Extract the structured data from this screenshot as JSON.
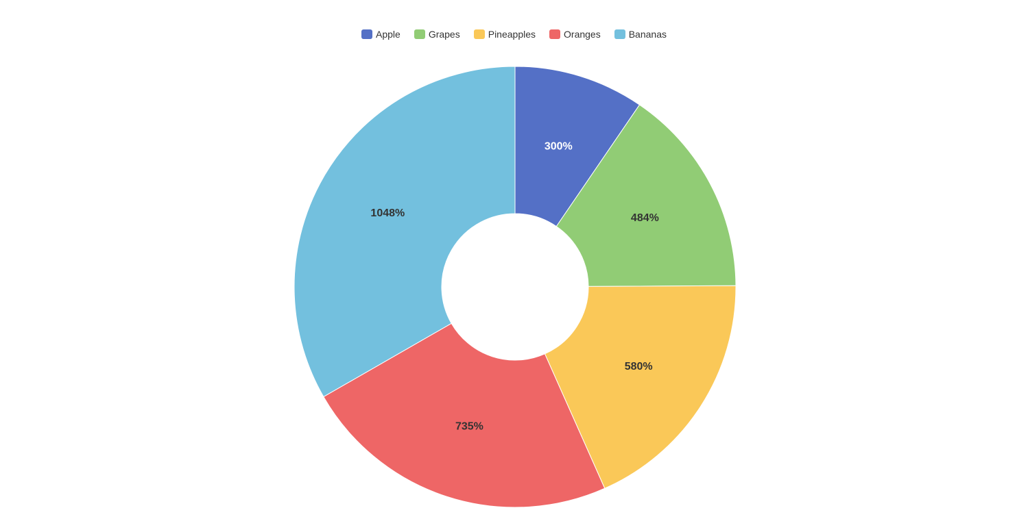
{
  "chart_data": {
    "type": "pie",
    "variant": "donut",
    "title": "",
    "legend_position": "top-center",
    "categories": [
      "Apple",
      "Grapes",
      "Pineapples",
      "Oranges",
      "Bananas"
    ],
    "values": [
      300,
      484,
      580,
      735,
      1048
    ],
    "labels": [
      "300%",
      "484%",
      "580%",
      "735%",
      "1048%"
    ],
    "colors": [
      "#5470c6",
      "#91cc75",
      "#fac858",
      "#ee6666",
      "#73c0de"
    ],
    "label_colors": [
      "#ffffff",
      "#333333",
      "#333333",
      "#333333",
      "#333333"
    ]
  }
}
